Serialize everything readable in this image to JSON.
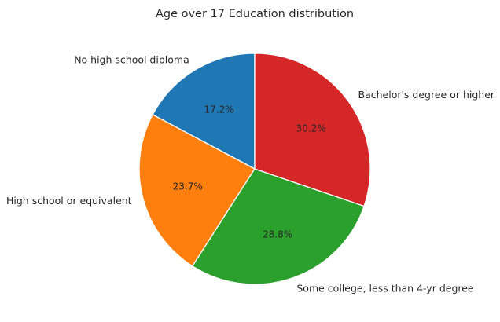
{
  "chart_data": {
    "type": "pie",
    "title": "Age over 17 Education distribution",
    "start_angle_deg": 90,
    "direction": "counterclockwise",
    "slices": [
      {
        "label": "No high school diploma",
        "value": 17.2,
        "pct_label": "17.2%",
        "color": "#1f77b4"
      },
      {
        "label": "High school or equivalent",
        "value": 23.7,
        "pct_label": "23.7%",
        "color": "#ff7f0e"
      },
      {
        "label": "Some college, less than 4-yr degree",
        "value": 28.8,
        "pct_label": "28.8%",
        "color": "#2ca02c"
      },
      {
        "label": "Bachelor's degree or higher",
        "value": 30.2,
        "pct_label": "30.2%",
        "color": "#d62728"
      }
    ]
  }
}
